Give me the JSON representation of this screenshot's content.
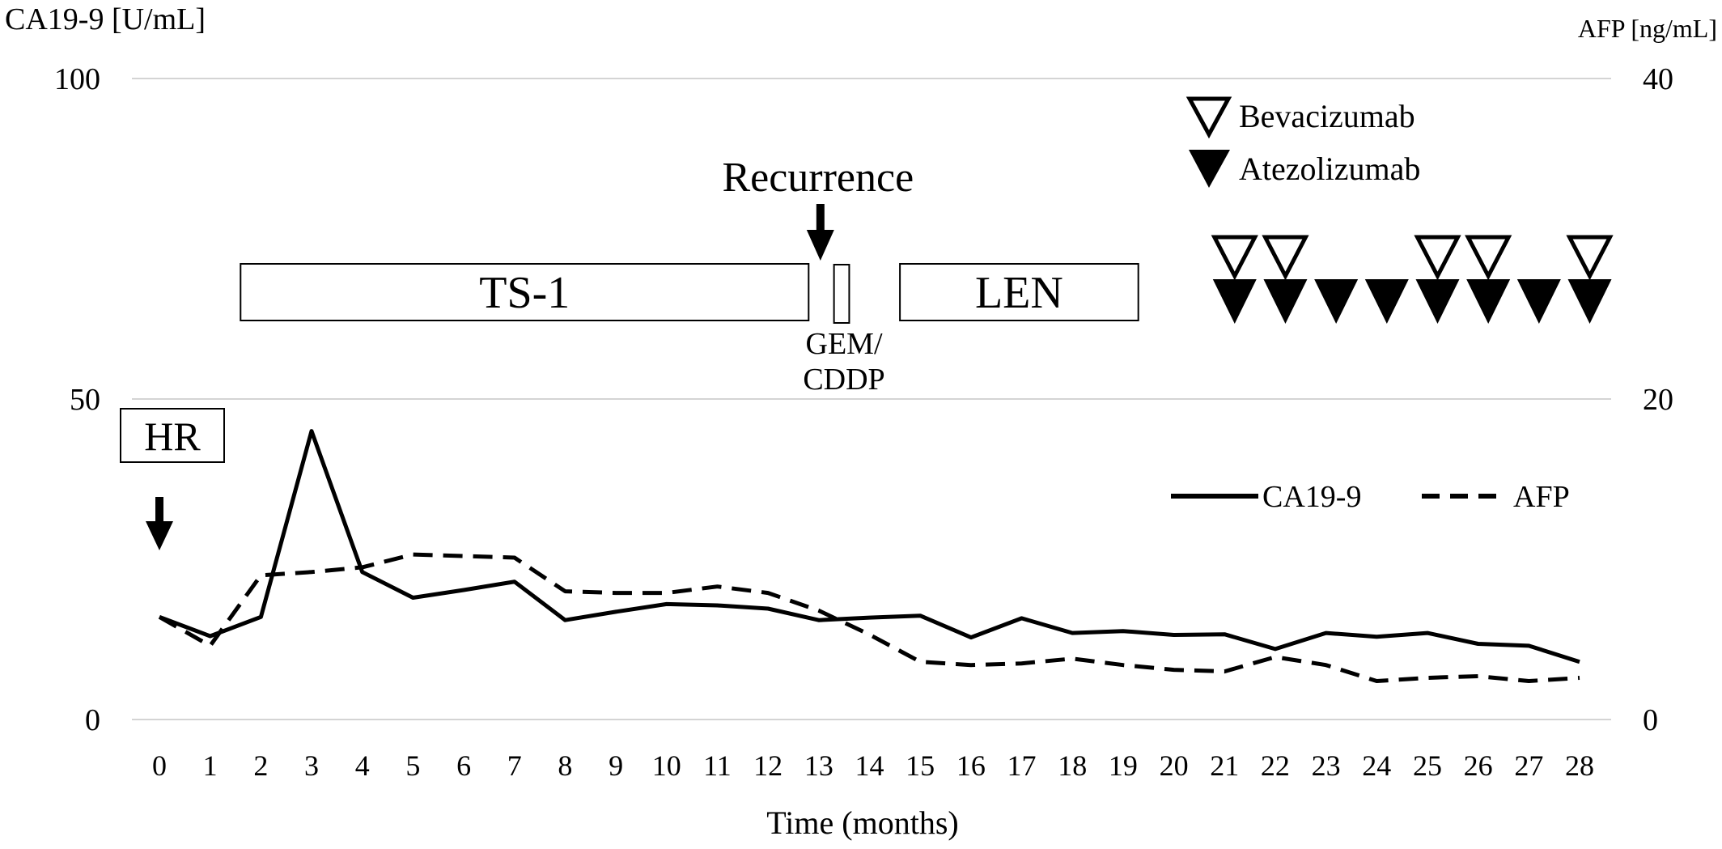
{
  "chart_data": {
    "type": "line",
    "y_left_label": "CA19-9 [U/mL]",
    "y_right_label": "AFP [ng/mL]",
    "xlabel": "Time (months)",
    "y_left_lim": [
      0,
      100
    ],
    "y_right_lim": [
      0,
      40
    ],
    "y_left_ticks": [
      "0",
      "50",
      "100"
    ],
    "y_right_ticks": [
      "0",
      "20",
      "40"
    ],
    "x_ticks": [
      "0",
      "1",
      "2",
      "3",
      "4",
      "5",
      "6",
      "7",
      "8",
      "9",
      "10",
      "11",
      "12",
      "13",
      "14",
      "15",
      "16",
      "17",
      "18",
      "19",
      "20",
      "21",
      "22",
      "23",
      "24",
      "25",
      "26",
      "27",
      "28"
    ],
    "grid": true,
    "legend_position": "right, below the 50 gridline",
    "series": [
      {
        "name": "CA19-9",
        "axis": "left",
        "style": "solid",
        "x": [
          0,
          1,
          2,
          3,
          4,
          5,
          6,
          7,
          8,
          9,
          10,
          11,
          12,
          13,
          14,
          15,
          16,
          17,
          18,
          19,
          20,
          21,
          22,
          23,
          24,
          25,
          26,
          27,
          28
        ],
        "y": [
          16,
          13,
          16,
          45,
          23,
          19,
          20.2,
          21.5,
          15.5,
          16.8,
          18,
          17.8,
          17.3,
          15.5,
          15.9,
          16.2,
          12.8,
          15.8,
          13.5,
          13.8,
          13.2,
          13.3,
          11,
          13.5,
          12.9,
          13.5,
          11.8,
          11.5,
          9
        ]
      },
      {
        "name": "AFP",
        "axis": "right",
        "style": "dashed",
        "x": [
          0,
          1,
          2,
          3,
          4,
          5,
          6,
          7,
          8,
          9,
          10,
          11,
          12,
          13,
          14,
          15,
          16,
          17,
          18,
          19,
          20,
          21,
          22,
          23,
          24,
          25,
          26,
          27,
          28
        ],
        "y": [
          6.4,
          4.6,
          9,
          9.2,
          9.5,
          10.3,
          10.2,
          10.1,
          8,
          7.9,
          7.9,
          8.3,
          7.9,
          6.8,
          5.3,
          3.6,
          3.4,
          3.5,
          3.8,
          3.4,
          3.1,
          3,
          3.9,
          3.4,
          2.4,
          2.6,
          2.7,
          2.4,
          2.6
        ]
      }
    ],
    "treatment_bars": [
      {
        "label": "TS-1",
        "start": 1.6,
        "end": 12.8
      },
      {
        "label": "GEM/\nCDDP",
        "start": 13.3,
        "end": 13.6
      },
      {
        "label": "LEN",
        "start": 14.6,
        "end": 19.3
      }
    ],
    "annotations": {
      "hr_label": "HR",
      "hr_month": 0,
      "recurrence_label": "Recurrence",
      "recurrence_month": 13,
      "gem_label_line1": "GEM/",
      "gem_label_line2": "CDDP"
    },
    "dosing": {
      "bevacizumab_label": "Bevacizumab",
      "atezolizumab_label": "Atezolizumab",
      "bevacizumab_months": [
        21,
        22,
        25,
        26,
        28
      ],
      "atezolizumab_months": [
        21,
        22,
        23,
        24,
        25,
        26,
        27,
        28
      ]
    }
  }
}
